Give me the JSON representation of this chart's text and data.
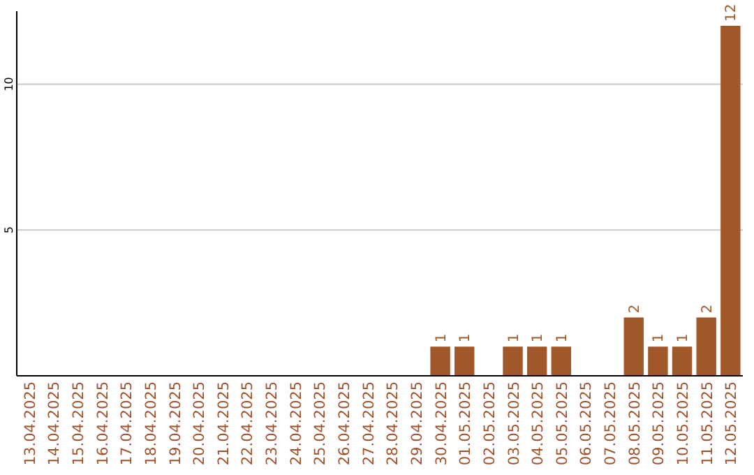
{
  "chart_data": {
    "type": "bar",
    "categories": [
      "13.04.2025",
      "14.04.2025",
      "15.04.2025",
      "16.04.2025",
      "17.04.2025",
      "18.04.2025",
      "19.04.2025",
      "20.04.2025",
      "21.04.2025",
      "22.04.2025",
      "23.04.2025",
      "24.04.2025",
      "25.04.2025",
      "26.04.2025",
      "27.04.2025",
      "28.04.2025",
      "29.04.2025",
      "30.04.2025",
      "01.05.2025",
      "02.05.2025",
      "03.05.2025",
      "04.05.2025",
      "05.05.2025",
      "06.05.2025",
      "07.05.2025",
      "08.05.2025",
      "09.05.2025",
      "10.05.2025",
      "11.05.2025",
      "12.05.2025"
    ],
    "values": [
      0,
      0,
      0,
      0,
      0,
      0,
      0,
      0,
      0,
      0,
      0,
      0,
      0,
      0,
      0,
      0,
      0,
      1,
      1,
      0,
      1,
      1,
      1,
      0,
      0,
      2,
      1,
      1,
      2,
      12
    ],
    "value_labels": [
      null,
      null,
      null,
      null,
      null,
      null,
      null,
      null,
      null,
      null,
      null,
      null,
      null,
      null,
      null,
      null,
      null,
      "1",
      "1",
      null,
      "1",
      "1",
      "1",
      null,
      null,
      "2",
      "1",
      "1",
      "2",
      "12"
    ],
    "color": "#a0582a",
    "ylim": [
      0,
      12.5
    ],
    "yticks": [
      5,
      10
    ],
    "grid": "y"
  }
}
